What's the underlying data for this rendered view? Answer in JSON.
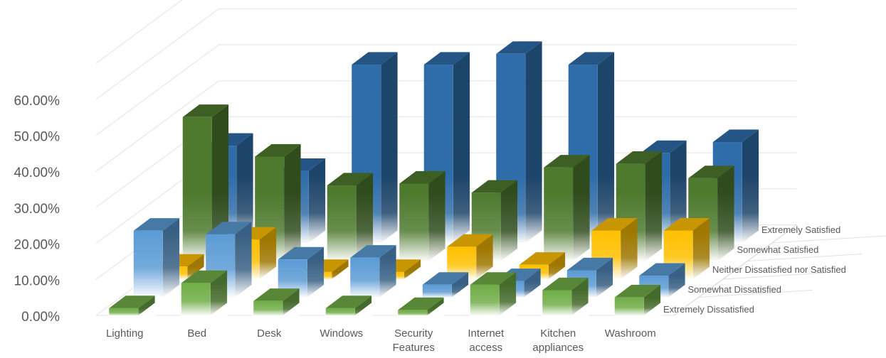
{
  "chart_data": {
    "type": "bar",
    "categories": [
      "Lighting",
      "Bed",
      "Desk",
      "Windows",
      "Security Features",
      "Internet access",
      "Kitchen appliances",
      "Washroom"
    ],
    "series": [
      {
        "name": "Extremely Dissatisfied",
        "values": [
          0.02,
          0.09,
          0.04,
          0.02,
          0.015,
          0.085,
          0.07,
          0.05
        ]
      },
      {
        "name": "Somewhat Dissatisfied",
        "values": [
          0.185,
          0.175,
          0.105,
          0.11,
          0.035,
          0.045,
          0.075,
          0.06
        ]
      },
      {
        "name": "Neither Dissatisfied nor Satisfied",
        "values": [
          0.035,
          0.11,
          0.02,
          0.02,
          0.09,
          0.04,
          0.135,
          0.135
        ]
      },
      {
        "name": "Somewhat Satisfied",
        "values": [
          0.4,
          0.29,
          0.21,
          0.215,
          0.19,
          0.26,
          0.27,
          0.23
        ]
      },
      {
        "name": "Extremely Satisfied",
        "values": [
          0.27,
          0.2,
          0.495,
          0.495,
          0.525,
          0.495,
          0.25,
          0.28
        ]
      }
    ],
    "series_colors": [
      "#70AD47",
      "#5B9BD5",
      "#FFC000",
      "#4E7A2E",
      "#2E6DAA"
    ],
    "y_ticks": [
      "0.00%",
      "10.00%",
      "20.00%",
      "30.00%",
      "40.00%",
      "50.00%",
      "60.00%"
    ],
    "ylim": [
      0,
      0.7
    ],
    "title": "",
    "xlabel": "",
    "ylabel": "",
    "legend_position": "right-depth-axis"
  }
}
